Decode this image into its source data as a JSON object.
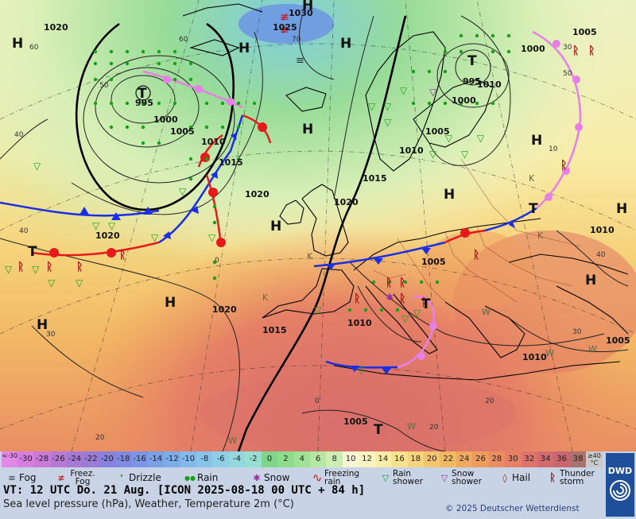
{
  "map": {
    "pressure_centers": [
      {
        "label": "H",
        "kind": "high"
      },
      {
        "label": "H",
        "kind": "high"
      },
      {
        "label": "H",
        "kind": "high"
      },
      {
        "label": "H",
        "kind": "high"
      },
      {
        "label": "H",
        "kind": "high"
      },
      {
        "label": "H",
        "kind": "high"
      },
      {
        "label": "H",
        "kind": "high"
      },
      {
        "label": "H",
        "kind": "high"
      },
      {
        "label": "H",
        "kind": "high"
      },
      {
        "label": "H",
        "kind": "high"
      },
      {
        "label": "H",
        "kind": "high"
      },
      {
        "label": "H",
        "kind": "high"
      },
      {
        "label": "T",
        "kind": "low",
        "value": "995"
      },
      {
        "label": "T",
        "kind": "low",
        "value": "995"
      },
      {
        "label": "T",
        "kind": "low"
      },
      {
        "label": "T",
        "kind": "low"
      },
      {
        "label": "T",
        "kind": "low"
      },
      {
        "label": "T",
        "kind": "low"
      }
    ],
    "isobar_labels": [
      "1020",
      "1030",
      "1025",
      "1000",
      "1005",
      "1000",
      "1005",
      "1010",
      "1015",
      "1020",
      "1020",
      "1015",
      "1005",
      "1010",
      "1000",
      "1005",
      "1010",
      "1020",
      "1015",
      "1010",
      "1005",
      "1010",
      "1005",
      "1010",
      "1020"
    ],
    "temperature_grid_labels": [
      "60",
      "60",
      "50",
      "70",
      "50",
      "40",
      "40",
      "30",
      "30",
      "20",
      "20",
      "0",
      "0",
      "40",
      "30",
      "20",
      "10"
    ],
    "weather_marks": [
      "K",
      "K",
      "K",
      "K",
      "W",
      "W",
      "W",
      "W",
      "W"
    ],
    "front_colors": {
      "cold": "#1a2ee6",
      "warm": "#e61a1a",
      "occluded": "#e680e6"
    },
    "background_colors": {
      "sea_cold": "#8fd6a0",
      "land_warm": "#f2b860",
      "hot": "#e88a6a",
      "very_cold": "#6a8ee6"
    }
  },
  "legend": {
    "temperature_scale": [
      {
        "label": "<-30",
        "color": "#e089e6"
      },
      {
        "label": "-30",
        "color": "#d67ee0"
      },
      {
        "label": "-28",
        "color": "#c97ad9"
      },
      {
        "label": "-26",
        "color": "#b778d6"
      },
      {
        "label": "-24",
        "color": "#a879d6"
      },
      {
        "label": "-22",
        "color": "#9a7bd8"
      },
      {
        "label": "-20",
        "color": "#8982dc"
      },
      {
        "label": "-18",
        "color": "#7f8be0"
      },
      {
        "label": "-16",
        "color": "#7a95e3"
      },
      {
        "label": "-14",
        "color": "#7aa1e6"
      },
      {
        "label": "-12",
        "color": "#7dade8"
      },
      {
        "label": "-10",
        "color": "#82b9ea"
      },
      {
        "label": "-8",
        "color": "#88c4ea"
      },
      {
        "label": "-6",
        "color": "#8ecfe6"
      },
      {
        "label": "-4",
        "color": "#93d8df"
      },
      {
        "label": "-2",
        "color": "#97ded3"
      },
      {
        "label": "0",
        "color": "#7fd68a"
      },
      {
        "label": "2",
        "color": "#8cdc8c"
      },
      {
        "label": "4",
        "color": "#9fe296"
      },
      {
        "label": "6",
        "color": "#b4e8a2"
      },
      {
        "label": "8",
        "color": "#cdeeb2"
      },
      {
        "label": "10",
        "color": "#f4f6d4"
      },
      {
        "label": "12",
        "color": "#f8f4c0"
      },
      {
        "label": "14",
        "color": "#f8eda6"
      },
      {
        "label": "16",
        "color": "#f7e290"
      },
      {
        "label": "18",
        "color": "#f6d47d"
      },
      {
        "label": "20",
        "color": "#f4c56f"
      },
      {
        "label": "22",
        "color": "#f2b865"
      },
      {
        "label": "24",
        "color": "#f0a95f"
      },
      {
        "label": "26",
        "color": "#ee9b5e"
      },
      {
        "label": "28",
        "color": "#ea8d62"
      },
      {
        "label": "30",
        "color": "#e57f66"
      },
      {
        "label": "32",
        "color": "#dd736a"
      },
      {
        "label": "34",
        "color": "#d46a6e"
      },
      {
        "label": "36",
        "color": "#c9656f"
      },
      {
        "label": "38",
        "color": "#a8726e"
      },
      {
        "label": "≥40 °C",
        "color": "#c9c9c9"
      }
    ],
    "weather_symbols": [
      {
        "label": "Fog",
        "icon": "fog-icon",
        "glyph": "≡",
        "color": "#333333"
      },
      {
        "label": "Freez. Fog",
        "icon": "freezing-fog-icon",
        "glyph": "≢",
        "color": "#c01818"
      },
      {
        "label": "Drizzle",
        "icon": "drizzle-icon",
        "glyph": "❜",
        "color": "#18a018"
      },
      {
        "label": "Rain",
        "icon": "rain-icon",
        "glyph": "●",
        "color": "#18a018"
      },
      {
        "label": "Snow",
        "icon": "snow-icon",
        "glyph": "✱",
        "color": "#9a30a0"
      },
      {
        "label": "Freezing rain",
        "icon": "freezing-rain-icon",
        "glyph": "∿",
        "color": "#c01818"
      },
      {
        "label": "Rain shower",
        "icon": "rain-shower-icon",
        "glyph": "▽",
        "color": "#18a018"
      },
      {
        "label": "Snow shower",
        "icon": "snow-shower-icon",
        "glyph": "▽",
        "color": "#9a30a0"
      },
      {
        "label": "Hail",
        "icon": "hail-icon",
        "glyph": "◊",
        "color": "#a01818"
      },
      {
        "label": "Thunder storm",
        "icon": "thunderstorm-icon",
        "glyph": "ᚱ",
        "color": "#a01818"
      }
    ],
    "vt_line": "VT: 12 UTC Do.  21 Aug. [ICON 2025-08-18  00 UTC + 84 h]",
    "subtitle": "Sea level pressure (hPa), Weather, Temperature 2m (°C)",
    "copyright": "© 2025 Deutscher Wetterdienst",
    "logo_text": "DWD"
  }
}
